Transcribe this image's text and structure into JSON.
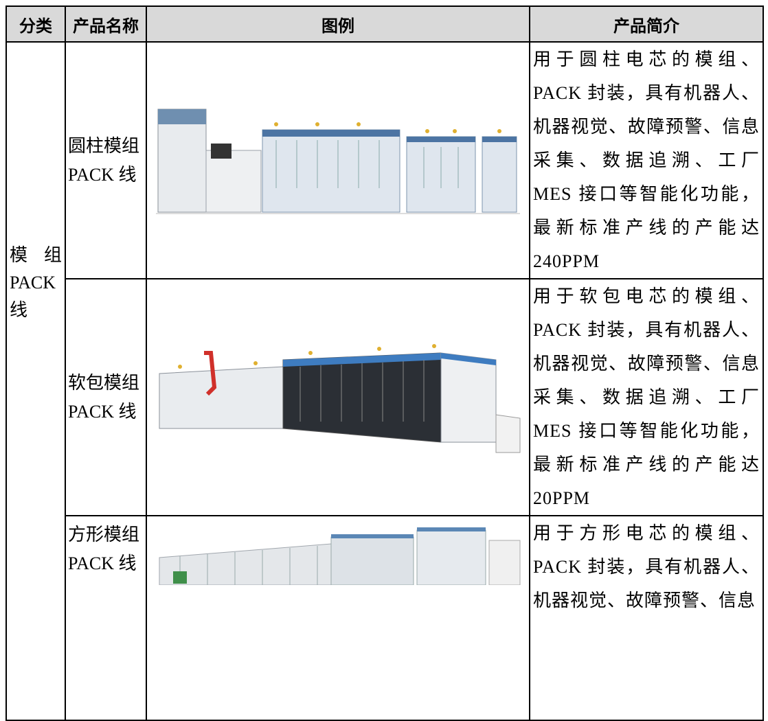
{
  "table": {
    "header": [
      "分类",
      "产品名称",
      "图例",
      "产品简介"
    ],
    "category": "模组PACK线",
    "rows": [
      {
        "name": "圆柱模组PACK 线",
        "description": "用于圆柱电芯的模组、PACK 封装，具有机器人、机器视觉、故障预警、信息采集、数据追溯、工厂 MES 接口等智能化功能，最新标准产线的产能达 240PPM"
      },
      {
        "name": "软包模组PACK 线",
        "description": "用于软包电芯的模组、PACK 封装，具有机器人、机器视觉、故障预警、信息采集、数据追溯、工厂 MES 接口等智能化功能，最新标准产线的产能达 20PPM"
      },
      {
        "name": "方形模组PACK 线",
        "description": "用于方形电芯的模组、PACK 封装，具有机器人、机器视觉、故障预警、信息"
      }
    ]
  }
}
